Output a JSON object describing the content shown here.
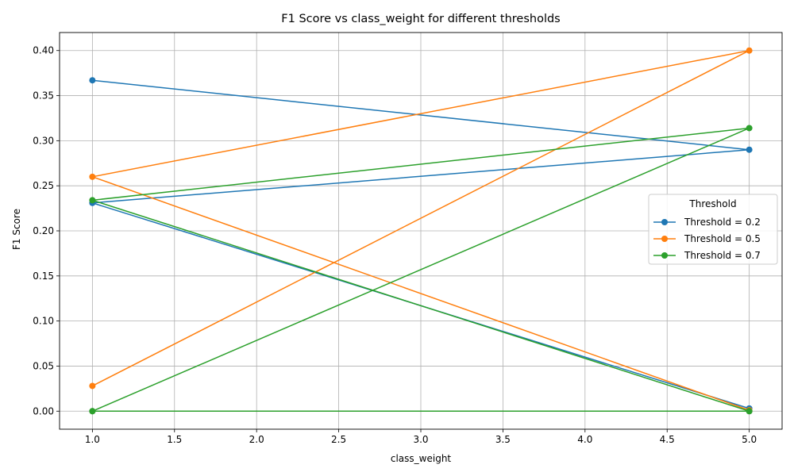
{
  "chart_data": {
    "type": "line",
    "title": "F1 Score vs class_weight for different thresholds",
    "xlabel": "class_weight",
    "ylabel": "F1 Score",
    "xlim": [
      0.8,
      5.2
    ],
    "ylim": [
      -0.02,
      0.42
    ],
    "xticks": [
      "1.0",
      "1.5",
      "2.0",
      "2.5",
      "3.0",
      "3.5",
      "4.0",
      "4.5",
      "5.0"
    ],
    "yticks": [
      "0.00",
      "0.05",
      "0.10",
      "0.15",
      "0.20",
      "0.25",
      "0.30",
      "0.35",
      "0.40"
    ],
    "grid": true,
    "legend": {
      "title": "Threshold",
      "placement": "center-right"
    },
    "series": [
      {
        "name": "Threshold = 0.2",
        "color": "#1f77b4",
        "x": [
          1.0,
          5.0,
          1.0,
          5.0
        ],
        "y": [
          0.367,
          0.29,
          0.231,
          0.003
        ]
      },
      {
        "name": "Threshold = 0.5",
        "color": "#ff7f0e",
        "x": [
          1.0,
          5.0,
          1.0,
          5.0
        ],
        "y": [
          0.028,
          0.4,
          0.26,
          0.001
        ]
      },
      {
        "name": "Threshold = 0.7",
        "color": "#2ca02c",
        "x": [
          1.0,
          5.0,
          1.0,
          5.0,
          1.0,
          5.0
        ],
        "y": [
          0.0,
          0.314,
          0.234,
          0.0,
          0.0,
          0.0
        ]
      }
    ]
  }
}
